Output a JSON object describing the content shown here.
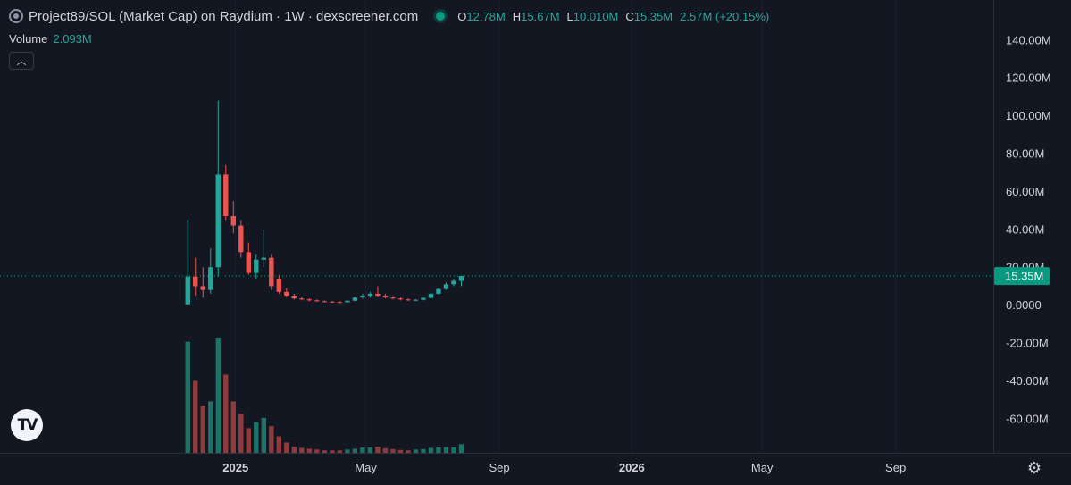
{
  "header": {
    "title": "Project89/SOL (Market Cap) on Raydium · 1W · dexscreener.com",
    "open_key": "O",
    "open": "12.78M",
    "high_key": "H",
    "high": "15.67M",
    "low_key": "L",
    "low": "10.010M",
    "close_key": "C",
    "close": "15.35M",
    "change": "2.57M (+20.15%)"
  },
  "volume_legend": {
    "label": "Volume",
    "value": "2.093M"
  },
  "icons": {
    "symbol": "symbol-circle-icon",
    "live": "live-dot-icon",
    "collapse": "chevron-up-icon",
    "logo": "tradingview-logo-icon",
    "settings": "gear-icon"
  },
  "colors": {
    "background": "#131722",
    "up": "#26a69a",
    "down": "#ef5350",
    "volume_up": "#1e7366",
    "volume_down": "#8f3b3b",
    "price_label": "#089981"
  },
  "chart_data": {
    "type": "candlestick",
    "title": "Project89/SOL (Market Cap) on Raydium",
    "interval": "1W",
    "y_axis": {
      "ticks": [
        140000000,
        120000000,
        100000000,
        80000000,
        60000000,
        40000000,
        20000000,
        0,
        -20000000,
        -40000000,
        -60000000
      ],
      "tick_labels": [
        "140.00M",
        "120.00M",
        "100.00M",
        "80.00M",
        "60.00M",
        "40.00M",
        "20.00M",
        "0.0000",
        "-20.00M",
        "-40.00M",
        "-60.00M"
      ],
      "ylim": [
        -78000000,
        147000000
      ]
    },
    "x_axis": {
      "tick_labels": [
        "2025",
        "May",
        "Sep",
        "2026",
        "May",
        "Sep"
      ],
      "tick_dates": [
        "2025-01-01",
        "2025-05-01",
        "2025-09-01",
        "2026-01-01",
        "2026-05-01",
        "2026-09-01"
      ],
      "xlim": [
        "2024-05-29",
        "2026-11-30"
      ]
    },
    "last_price": 15350000,
    "last_price_label": "15.35M",
    "candles": [
      {
        "date": "2024-11-18",
        "o": 400000,
        "h": 45000000,
        "l": 200000,
        "c": 15000000
      },
      {
        "date": "2024-11-25",
        "o": 15000000,
        "h": 25000000,
        "l": 5000000,
        "c": 10000000
      },
      {
        "date": "2024-12-02",
        "o": 10000000,
        "h": 20000000,
        "l": 4000000,
        "c": 8000000
      },
      {
        "date": "2024-12-09",
        "o": 8000000,
        "h": 30000000,
        "l": 6000000,
        "c": 20000000
      },
      {
        "date": "2024-12-16",
        "o": 20000000,
        "h": 108000000,
        "l": 15000000,
        "c": 69000000
      },
      {
        "date": "2024-12-23",
        "o": 69000000,
        "h": 74000000,
        "l": 45000000,
        "c": 47000000
      },
      {
        "date": "2024-12-30",
        "o": 47000000,
        "h": 55000000,
        "l": 38000000,
        "c": 42000000
      },
      {
        "date": "2025-01-06",
        "o": 42000000,
        "h": 45000000,
        "l": 25000000,
        "c": 28000000
      },
      {
        "date": "2025-01-13",
        "o": 28000000,
        "h": 33000000,
        "l": 16000000,
        "c": 17000000
      },
      {
        "date": "2025-01-20",
        "o": 17000000,
        "h": 27000000,
        "l": 14000000,
        "c": 24000000
      },
      {
        "date": "2025-01-27",
        "o": 24000000,
        "h": 40000000,
        "l": 20000000,
        "c": 25000000
      },
      {
        "date": "2025-02-03",
        "o": 25000000,
        "h": 27000000,
        "l": 8000000,
        "c": 10000000
      },
      {
        "date": "2025-02-10",
        "o": 14000000,
        "h": 16000000,
        "l": 6000000,
        "c": 7000000
      },
      {
        "date": "2025-02-17",
        "o": 7000000,
        "h": 9000000,
        "l": 4000000,
        "c": 5000000
      },
      {
        "date": "2025-02-24",
        "o": 5000000,
        "h": 6000000,
        "l": 3000000,
        "c": 3500000
      },
      {
        "date": "2025-03-03",
        "o": 3500000,
        "h": 4500000,
        "l": 2500000,
        "c": 3000000
      },
      {
        "date": "2025-03-10",
        "o": 3000000,
        "h": 3600000,
        "l": 2000000,
        "c": 2500000
      },
      {
        "date": "2025-03-17",
        "o": 2500000,
        "h": 3000000,
        "l": 1800000,
        "c": 2000000
      },
      {
        "date": "2025-03-24",
        "o": 2000000,
        "h": 2500000,
        "l": 1500000,
        "c": 1800000
      },
      {
        "date": "2025-03-31",
        "o": 1800000,
        "h": 2200000,
        "l": 1400000,
        "c": 1600000
      },
      {
        "date": "2025-04-07",
        "o": 1600000,
        "h": 2000000,
        "l": 1200000,
        "c": 1500000
      },
      {
        "date": "2025-04-14",
        "o": 1500000,
        "h": 2500000,
        "l": 1400000,
        "c": 2300000
      },
      {
        "date": "2025-04-21",
        "o": 2300000,
        "h": 4500000,
        "l": 2000000,
        "c": 4000000
      },
      {
        "date": "2025-04-28",
        "o": 4000000,
        "h": 6000000,
        "l": 3500000,
        "c": 5000000
      },
      {
        "date": "2025-05-05",
        "o": 5000000,
        "h": 7000000,
        "l": 4000000,
        "c": 6000000
      },
      {
        "date": "2025-05-12",
        "o": 6000000,
        "h": 10000000,
        "l": 4500000,
        "c": 5000000
      },
      {
        "date": "2025-05-19",
        "o": 5000000,
        "h": 6000000,
        "l": 3500000,
        "c": 4000000
      },
      {
        "date": "2025-05-26",
        "o": 4000000,
        "h": 4800000,
        "l": 3000000,
        "c": 3500000
      },
      {
        "date": "2025-06-02",
        "o": 3500000,
        "h": 4000000,
        "l": 2500000,
        "c": 3000000
      },
      {
        "date": "2025-06-09",
        "o": 3000000,
        "h": 3500000,
        "l": 2200000,
        "c": 2600000
      },
      {
        "date": "2025-06-16",
        "o": 2600000,
        "h": 3200000,
        "l": 2000000,
        "c": 2800000
      },
      {
        "date": "2025-06-23",
        "o": 2800000,
        "h": 4000000,
        "l": 2500000,
        "c": 3800000
      },
      {
        "date": "2025-06-30",
        "o": 3800000,
        "h": 6500000,
        "l": 3500000,
        "c": 6000000
      },
      {
        "date": "2025-07-07",
        "o": 6000000,
        "h": 9000000,
        "l": 5500000,
        "c": 8500000
      },
      {
        "date": "2025-07-14",
        "o": 8500000,
        "h": 12000000,
        "l": 8000000,
        "c": 11000000
      },
      {
        "date": "2025-07-21",
        "o": 11000000,
        "h": 14000000,
        "l": 10000000,
        "c": 12780000
      },
      {
        "date": "2025-07-28",
        "o": 12780000,
        "h": 15670000,
        "l": 10010000,
        "c": 15350000
      }
    ],
    "volume": [
      27.0,
      17.5,
      11.5,
      12.5,
      28.0,
      19.0,
      12.5,
      9.5,
      6.0,
      7.5,
      8.5,
      6.5,
      4.0,
      2.5,
      1.5,
      1.2,
      1.0,
      0.8,
      0.6,
      0.6,
      0.6,
      0.8,
      1.0,
      1.3,
      1.3,
      1.5,
      1.1,
      0.9,
      0.7,
      0.6,
      0.8,
      0.9,
      1.2,
      1.3,
      1.4,
      1.3,
      2.093
    ],
    "volume_unit": "M"
  }
}
